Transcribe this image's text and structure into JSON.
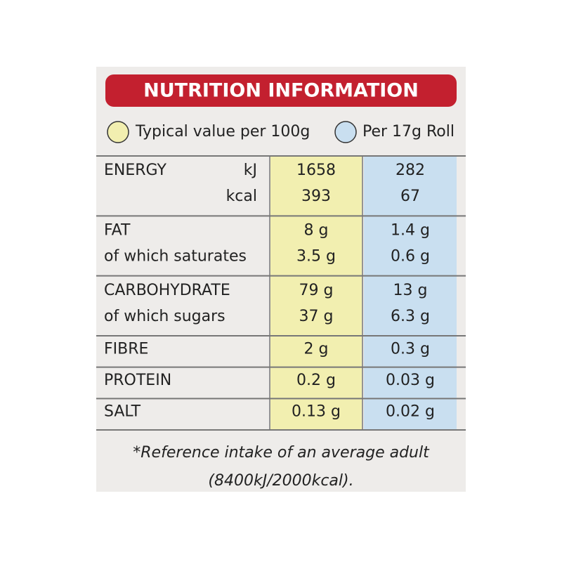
{
  "header": {
    "title": "NUTRITION INFORMATION"
  },
  "legend": [
    {
      "label": "Typical value per 100g"
    },
    {
      "label": "Per 17g Roll"
    }
  ],
  "table": {
    "rows": [
      {
        "lines": [
          {
            "label": "ENERGY",
            "unit": "kJ",
            "per100g": "1658",
            "perRoll": "282"
          },
          {
            "unit": "kcal",
            "per100g": "393",
            "perRoll": "67"
          }
        ]
      },
      {
        "lines": [
          {
            "label": "FAT",
            "per100g": "8 g",
            "perRoll": "1.4 g"
          },
          {
            "label": "of which saturates",
            "per100g": "3.5 g",
            "perRoll": "0.6 g"
          }
        ]
      },
      {
        "lines": [
          {
            "label": "CARBOHYDRATE",
            "per100g": "79 g",
            "perRoll": "13 g"
          },
          {
            "label": "of which sugars",
            "per100g": "37 g",
            "perRoll": "6.3 g"
          }
        ]
      },
      {
        "lines": [
          {
            "label": "FIBRE",
            "per100g": "2 g",
            "perRoll": "0.3 g"
          }
        ]
      },
      {
        "lines": [
          {
            "label": "PROTEIN",
            "per100g": "0.2 g",
            "perRoll": "0.03 g"
          }
        ]
      },
      {
        "lines": [
          {
            "label": "SALT",
            "per100g": "0.13 g",
            "perRoll": "0.02 g"
          }
        ]
      }
    ]
  },
  "footnote": [
    "*Reference intake of an average adult",
    "(8400kJ/2000kcal)."
  ]
}
